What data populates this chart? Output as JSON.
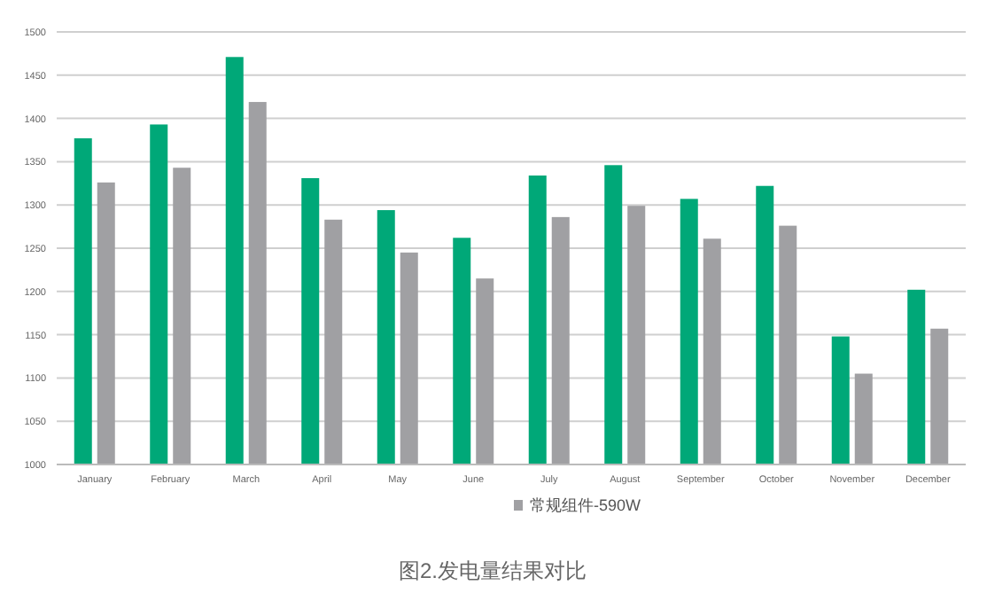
{
  "chart_data": {
    "type": "bar",
    "title": "图2.发电量结果对比",
    "categories": [
      "January",
      "February",
      "March",
      "April",
      "May",
      "June",
      "July",
      "August",
      "September",
      "October",
      "November",
      "December"
    ],
    "series": [
      {
        "color": "#00a878",
        "values": [
          1377,
          1393,
          1471,
          1331,
          1294,
          1262,
          1334,
          1346,
          1307,
          1322,
          1148,
          1202
        ]
      },
      {
        "name": "常规组件-590W",
        "color": "#a0a0a3",
        "values": [
          1326,
          1343,
          1419,
          1283,
          1245,
          1215,
          1286,
          1299,
          1261,
          1276,
          1105,
          1157
        ]
      }
    ],
    "ylim": [
      1000,
      1500
    ],
    "yticks": [
      1000,
      1050,
      1100,
      1150,
      1200,
      1250,
      1300,
      1350,
      1400,
      1450,
      1500
    ],
    "grid": "y",
    "legend": "bottom"
  }
}
